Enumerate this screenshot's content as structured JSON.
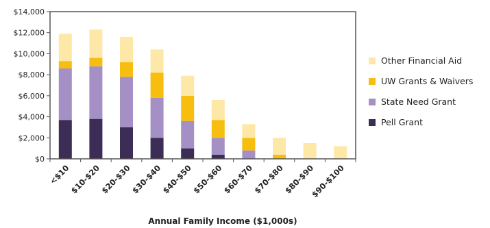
{
  "chart_data": {
    "type": "bar",
    "stacked": true,
    "title": "",
    "xlabel": "Annual Family Income ($1,000s)",
    "ylabel": "",
    "ylim": [
      0,
      14000
    ],
    "yticks": [
      0,
      2000,
      4000,
      6000,
      8000,
      10000,
      12000,
      14000
    ],
    "ytick_labels": [
      "$0",
      "$2,000",
      "$4,000",
      "$6,000",
      "$8,000",
      "$10,000",
      "$12,000",
      "$14,000"
    ],
    "grid": false,
    "legend_position": "right",
    "categories": [
      "<$10",
      "$10-$20",
      "$20-$30",
      "$30-$40",
      "$40-$50",
      "$50-$60",
      "$60-$70",
      "$70-$80",
      "$80-$90",
      "$90-$100"
    ],
    "series": [
      {
        "name": "Pell Grant",
        "color": "#3b2d55",
        "values": [
          3700,
          3800,
          3000,
          2000,
          1000,
          400,
          0,
          0,
          0,
          0
        ]
      },
      {
        "name": "State Need Grant",
        "color": "#a590c6",
        "values": [
          4900,
          5000,
          4800,
          3800,
          2600,
          1600,
          800,
          0,
          0,
          0
        ]
      },
      {
        "name": "UW Grants & Waivers",
        "color": "#f7bd0f",
        "values": [
          700,
          800,
          1400,
          2400,
          2400,
          1700,
          1200,
          400,
          0,
          0
        ]
      },
      {
        "name": "Other Financial Aid",
        "color": "#fde8a8",
        "values": [
          2600,
          2700,
          2400,
          2200,
          1900,
          1900,
          1300,
          1600,
          1500,
          1200
        ]
      }
    ]
  }
}
